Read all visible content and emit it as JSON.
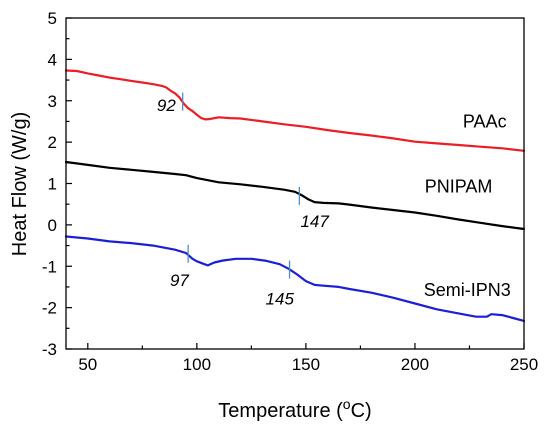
{
  "chart_data": {
    "type": "line",
    "title": "",
    "xlabel": "Temperature (",
    "xlabel_sup": "o",
    "xlabel_tail": "C)",
    "ylabel": "Heat Flow (W/g)",
    "xlim": [
      40,
      250
    ],
    "ylim": [
      -3,
      5
    ],
    "xticks": [
      50,
      100,
      150,
      200,
      250
    ],
    "yticks": [
      -3,
      -2,
      -1,
      0,
      1,
      2,
      3,
      4,
      5
    ],
    "marker_color": "#4a90c8",
    "series": [
      {
        "name": "PAAc",
        "color": "#ee1c24",
        "label_at": [
          232,
          2.35
        ],
        "points": [
          [
            40,
            3.73
          ],
          [
            45,
            3.72
          ],
          [
            50,
            3.66
          ],
          [
            55,
            3.61
          ],
          [
            60,
            3.56
          ],
          [
            65,
            3.52
          ],
          [
            70,
            3.48
          ],
          [
            75,
            3.44
          ],
          [
            80,
            3.4
          ],
          [
            84,
            3.36
          ],
          [
            86,
            3.32
          ],
          [
            88,
            3.24
          ],
          [
            90,
            3.18
          ],
          [
            92,
            3.08
          ],
          [
            94,
            2.93
          ],
          [
            96,
            2.82
          ],
          [
            98,
            2.75
          ],
          [
            100,
            2.66
          ],
          [
            102,
            2.58
          ],
          [
            104,
            2.55
          ],
          [
            106,
            2.56
          ],
          [
            110,
            2.6
          ],
          [
            115,
            2.58
          ],
          [
            120,
            2.57
          ],
          [
            130,
            2.5
          ],
          [
            140,
            2.43
          ],
          [
            150,
            2.37
          ],
          [
            160,
            2.29
          ],
          [
            170,
            2.22
          ],
          [
            180,
            2.16
          ],
          [
            190,
            2.09
          ],
          [
            200,
            2.01
          ],
          [
            210,
            1.97
          ],
          [
            220,
            1.93
          ],
          [
            230,
            1.89
          ],
          [
            240,
            1.85
          ],
          [
            250,
            1.79
          ]
        ]
      },
      {
        "name": "PNIPAM",
        "color": "#000000",
        "label_at": [
          220,
          0.78
        ],
        "points": [
          [
            40,
            1.52
          ],
          [
            50,
            1.45
          ],
          [
            60,
            1.38
          ],
          [
            70,
            1.33
          ],
          [
            80,
            1.28
          ],
          [
            90,
            1.23
          ],
          [
            95,
            1.2
          ],
          [
            100,
            1.13
          ],
          [
            110,
            1.03
          ],
          [
            120,
            0.98
          ],
          [
            130,
            0.92
          ],
          [
            140,
            0.85
          ],
          [
            145,
            0.8
          ],
          [
            148,
            0.72
          ],
          [
            151,
            0.62
          ],
          [
            154,
            0.55
          ],
          [
            158,
            0.53
          ],
          [
            165,
            0.52
          ],
          [
            170,
            0.49
          ],
          [
            180,
            0.42
          ],
          [
            190,
            0.36
          ],
          [
            200,
            0.3
          ],
          [
            210,
            0.22
          ],
          [
            220,
            0.13
          ],
          [
            230,
            0.05
          ],
          [
            240,
            -0.03
          ],
          [
            250,
            -0.1
          ]
        ]
      },
      {
        "name": "Semi-IPN3",
        "color": "#1b20d6",
        "label_at": [
          224,
          -1.72
        ],
        "points": [
          [
            40,
            -0.28
          ],
          [
            50,
            -0.33
          ],
          [
            60,
            -0.4
          ],
          [
            70,
            -0.44
          ],
          [
            80,
            -0.5
          ],
          [
            90,
            -0.6
          ],
          [
            95,
            -0.68
          ],
          [
            98,
            -0.82
          ],
          [
            100,
            -0.88
          ],
          [
            103,
            -0.94
          ],
          [
            105,
            -0.98
          ],
          [
            108,
            -0.91
          ],
          [
            112,
            -0.86
          ],
          [
            118,
            -0.82
          ],
          [
            125,
            -0.82
          ],
          [
            132,
            -0.87
          ],
          [
            138,
            -0.95
          ],
          [
            142,
            -1.06
          ],
          [
            146,
            -1.2
          ],
          [
            150,
            -1.36
          ],
          [
            154,
            -1.45
          ],
          [
            158,
            -1.47
          ],
          [
            165,
            -1.5
          ],
          [
            170,
            -1.55
          ],
          [
            180,
            -1.64
          ],
          [
            190,
            -1.76
          ],
          [
            200,
            -1.9
          ],
          [
            210,
            -2.04
          ],
          [
            220,
            -2.14
          ],
          [
            228,
            -2.22
          ],
          [
            233,
            -2.22
          ],
          [
            235,
            -2.16
          ],
          [
            240,
            -2.18
          ],
          [
            245,
            -2.25
          ],
          [
            250,
            -2.32
          ]
        ]
      }
    ],
    "annotations": [
      {
        "label": "92",
        "x": 93.5,
        "y": 2.98,
        "text_at": [
          86,
          2.75
        ]
      },
      {
        "label": "147",
        "x": 147.0,
        "y": 0.7,
        "text_at": [
          154,
          -0.05
        ]
      },
      {
        "label": "97",
        "x": 96.0,
        "y": -0.7,
        "text_at": [
          92,
          -1.48
        ]
      },
      {
        "label": "145",
        "x": 142.5,
        "y": -1.08,
        "text_at": [
          138,
          -1.92
        ]
      }
    ]
  }
}
